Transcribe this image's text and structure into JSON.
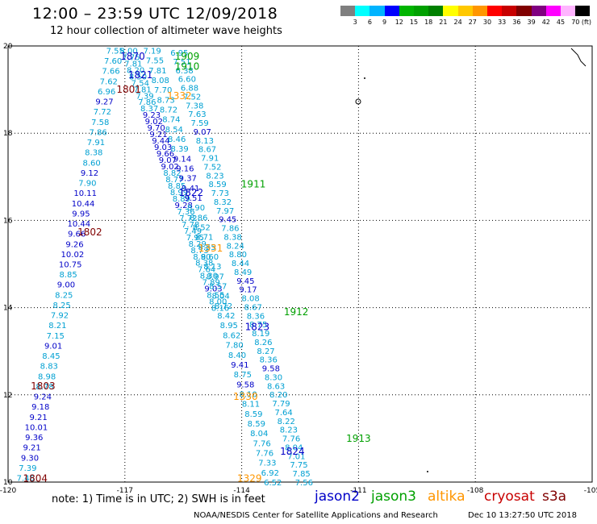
{
  "title": "12:00 – 23:59 UTC 12/09/2018",
  "subtitle": "12 hour collection of altimeter wave heights",
  "colorbar": {
    "colors": [
      "#7f7f7f",
      "#00ffff",
      "#00b4ff",
      "#0000ff",
      "#00b400",
      "#00a000",
      "#008000",
      "#ffff00",
      "#ffc800",
      "#ff9600",
      "#ff0000",
      "#c80000",
      "#800000",
      "#800080",
      "#ff00ff",
      "#ffb4ff",
      "#000000"
    ],
    "labels": [
      "3",
      "6",
      "9",
      "12",
      "15",
      "18",
      "21",
      "24",
      "27",
      "30",
      "33",
      "36",
      "39",
      "42",
      "45",
      "70 (ft)"
    ]
  },
  "axes": {
    "x_ticks": [
      "-120",
      "-117",
      "-114",
      "-111",
      "-108",
      "-105"
    ],
    "y_ticks": [
      "10",
      "12",
      "14",
      "16",
      "18",
      "20"
    ],
    "xlim": [
      -120,
      -105
    ],
    "ylim": [
      10,
      20
    ]
  },
  "colors": {
    "jason2": "#0000c8",
    "jason3": "#00a000",
    "altika": "#ff9600",
    "cryosat": "#c80000",
    "s3a": "#800000",
    "wave_low": "#00a0d2",
    "wave_mid": "#0000c8"
  },
  "track_labels": [
    {
      "text": "1870",
      "sat": "jason2",
      "lon": -116.8,
      "lat": 19.78
    },
    {
      "text": "1909",
      "sat": "jason3",
      "lon": -115.4,
      "lat": 19.78
    },
    {
      "text": "1910",
      "sat": "jason3",
      "lon": -115.4,
      "lat": 19.55
    },
    {
      "text": "1821",
      "sat": "jason2",
      "lon": -116.6,
      "lat": 19.35
    },
    {
      "text": "1801",
      "sat": "s3a",
      "lon": -116.9,
      "lat": 19.02
    },
    {
      "text": "1332",
      "sat": "altika",
      "lon": -115.6,
      "lat": 18.87
    },
    {
      "text": "1911",
      "sat": "jason3",
      "lon": -113.7,
      "lat": 16.85
    },
    {
      "text": "1822",
      "sat": "jason2",
      "lon": -115.3,
      "lat": 16.65
    },
    {
      "text": "1802",
      "sat": "s3a",
      "lon": -117.9,
      "lat": 15.75
    },
    {
      "text": "1331",
      "sat": "altika",
      "lon": -114.8,
      "lat": 15.38
    },
    {
      "text": "1912",
      "sat": "jason3",
      "lon": -112.6,
      "lat": 13.92
    },
    {
      "text": "1823",
      "sat": "jason2",
      "lon": -113.6,
      "lat": 13.58
    },
    {
      "text": "1803",
      "sat": "s3a",
      "lon": -119.1,
      "lat": 12.22
    },
    {
      "text": "1330",
      "sat": "altika",
      "lon": -113.9,
      "lat": 11.98
    },
    {
      "text": "1913",
      "sat": "jason3",
      "lon": -111.0,
      "lat": 11.02
    },
    {
      "text": "1824",
      "sat": "jason2",
      "lon": -112.7,
      "lat": 10.72
    },
    {
      "text": "1804",
      "sat": "s3a",
      "lon": -119.3,
      "lat": 10.1
    },
    {
      "text": "1329",
      "sat": "altika",
      "lon": -113.8,
      "lat": 10.1
    }
  ],
  "tracks": [
    {
      "name": "t1801",
      "start": [
        -117.25,
        19.9
      ],
      "end": [
        -119.55,
        10.1
      ],
      "values": [
        "7.55",
        "7.60",
        "7.66",
        "7.62",
        "6.96",
        "9.27",
        "7.72",
        "7.58",
        "7.86",
        "7.91",
        "8.38",
        "8.60",
        "9.12",
        "7.90",
        "10.11",
        "10.44",
        "9.95",
        "10.44",
        "9.66",
        "9.26",
        "10.02",
        "10.75",
        "8.85",
        "9.00",
        "8.25",
        "8.25",
        "7.92",
        "8.21",
        "7.15",
        "9.01",
        "8.45",
        "8.83",
        "8.98",
        "8.78",
        "9.24",
        "9.18",
        "9.21",
        "10.01",
        "9.36",
        "9.21",
        "9.30",
        "7.39",
        "7.46"
      ]
    },
    {
      "name": "t1870",
      "start": [
        -116.9,
        19.9
      ],
      "end": [
        -114.55,
        14.0
      ],
      "values": [
        "8.00",
        "7.75",
        "7.81",
        "8.20",
        "8.50",
        "7.54",
        "7.81",
        "7.39",
        "7.86",
        "8.37",
        "9.23",
        "9.02",
        "9.70",
        "9.21",
        "9.44",
        "9.03",
        "9.66",
        "9.07",
        "9.02",
        "8.82",
        "8.77",
        "8.85",
        "8.99",
        "8.89",
        "9.28",
        "7.36",
        "7.72",
        "7.78",
        "7.49",
        "7.95",
        "8.29",
        "8.73",
        "8.90",
        "8.38",
        "7.64",
        "8.30",
        "7.89",
        "9.03",
        "8.55",
        "8.00",
        "8.16"
      ]
    },
    {
      "name": "t1332",
      "start": [
        -116.3,
        19.9
      ],
      "end": [
        -113.2,
        10.0
      ],
      "values": [
        "7.19",
        "7.55",
        "7.81",
        "8.08",
        "7.70",
        "8.73",
        "8.72",
        "8.74",
        "8.54",
        "8.46",
        "8.39",
        "9.14",
        "9.16",
        "9.37",
        "9.41",
        "9.51",
        "8.90",
        "8.86",
        "8.52",
        "8.71",
        "8.55",
        "8.60",
        "8.13",
        "8.97",
        "8.57",
        "8.04",
        "8.72",
        "8.42",
        "8.95",
        "8.62",
        "7.80",
        "8.40",
        "9.41",
        "8.75",
        "9.58",
        "8.10",
        "8.11",
        "8.59",
        "8.59",
        "8.04",
        "7.76",
        "7.76",
        "7.33",
        "6.92",
        "6.52"
      ]
    },
    {
      "name": "t1909",
      "start": [
        -115.6,
        19.85
      ],
      "end": [
        -112.4,
        10.0
      ],
      "values": [
        "6.95",
        "7.51",
        "6.38",
        "6.60",
        "6.88",
        "7.52",
        "7.38",
        "7.63",
        "7.59",
        "9.07",
        "8.13",
        "8.67",
        "7.91",
        "7.52",
        "8.23",
        "8.59",
        "7.73",
        "8.32",
        "7.97",
        "9.45",
        "7.86",
        "8.38",
        "8.24",
        "8.80",
        "8.44",
        "8.49",
        "9.45",
        "9.17",
        "8.08",
        "8.67",
        "8.36",
        "8.75",
        "8.19",
        "8.26",
        "8.27",
        "8.36",
        "9.58",
        "8.30",
        "8.63",
        "8.20",
        "7.79",
        "7.64",
        "8.22",
        "8.23",
        "7.76",
        "8.04",
        "7.01",
        "7.75",
        "7.85",
        "7.56"
      ]
    }
  ],
  "note": "note:  1) Time is in UTC;  2) SWH is in feet",
  "satellites": [
    {
      "label": "jason2",
      "color": "#0000c8"
    },
    {
      "label": "jason3",
      "color": "#00a000"
    },
    {
      "label": "altika",
      "color": "#ff9600"
    },
    {
      "label": "cryosat",
      "color": "#c80000"
    },
    {
      "label": "s3a",
      "color": "#800000"
    }
  ],
  "credit": "NOAA/NESDIS Center for Satellite Applications and Research",
  "timestamp": "Dec 10 13:27:50 UTC 2018"
}
